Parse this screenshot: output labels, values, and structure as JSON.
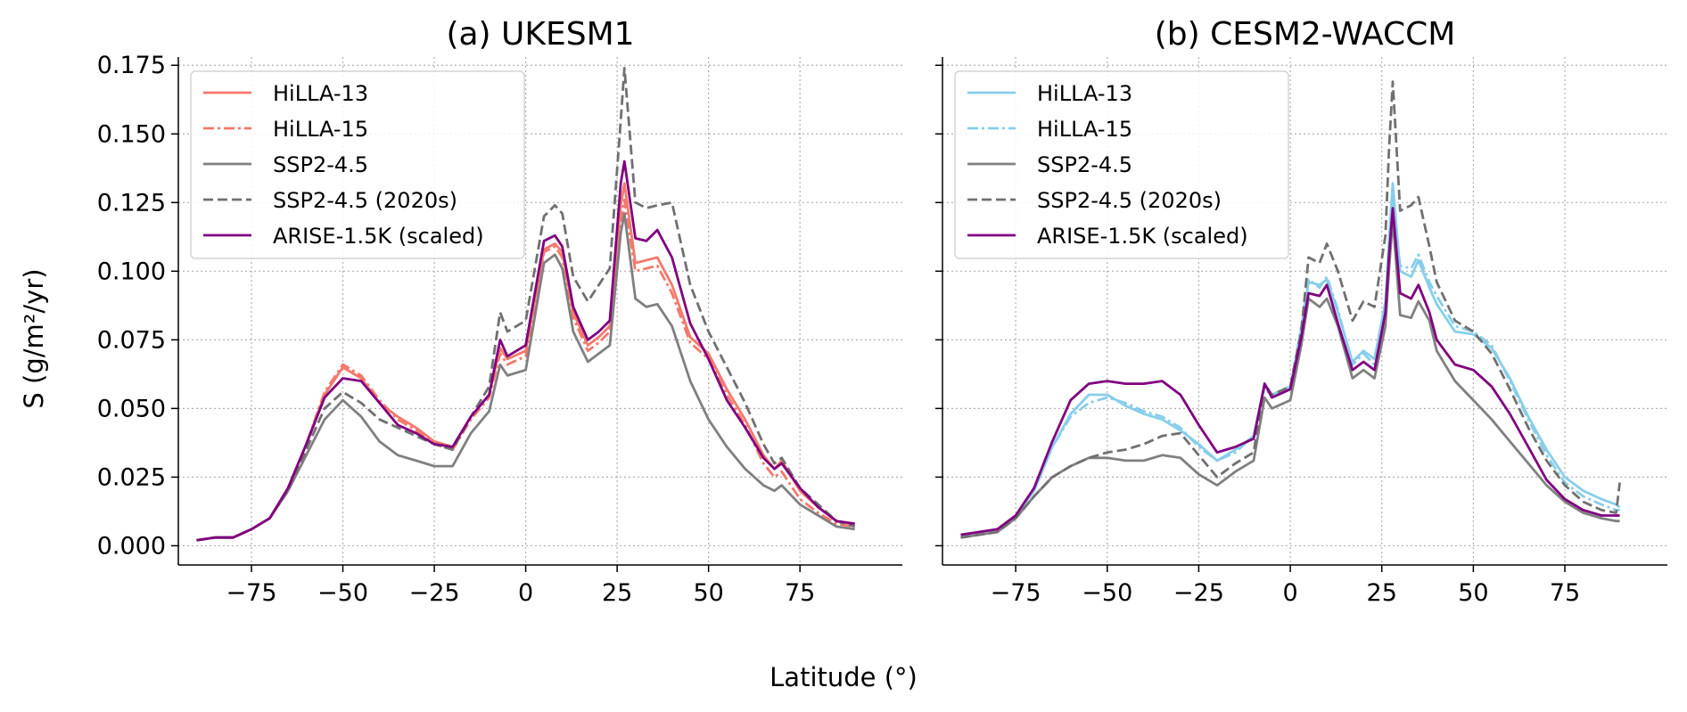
{
  "figure": {
    "ylabel": "S (g/m²/yr)",
    "xlabel": "Latitude (°)"
  },
  "chart_data": [
    {
      "type": "line",
      "title": "(a) UKESM1",
      "xlim": [
        -95,
        103
      ],
      "ylim": [
        -0.007,
        0.178
      ],
      "xticks": [
        -75,
        -50,
        -25,
        0,
        25,
        50,
        75
      ],
      "xtick_labels": [
        "−75",
        "−50",
        "−25",
        "0",
        "25",
        "50",
        "75"
      ],
      "yticks": [
        0.0,
        0.025,
        0.05,
        0.075,
        0.1,
        0.125,
        0.15,
        0.175
      ],
      "ytick_labels": [
        "0.000",
        "0.025",
        "0.050",
        "0.075",
        "0.100",
        "0.125",
        "0.150",
        "0.175"
      ],
      "grid": true,
      "legend_position": "top-left",
      "x": [
        -90,
        -85,
        -80,
        -75,
        -70,
        -65,
        -60,
        -55,
        -50,
        -45,
        -40,
        -35,
        -30,
        -25,
        -20,
        -15,
        -10,
        -7,
        -5,
        0,
        5,
        8,
        10,
        13,
        17,
        20,
        23,
        26,
        27,
        30,
        33,
        36,
        40,
        45,
        50,
        55,
        60,
        65,
        68,
        70,
        75,
        80,
        85,
        90
      ],
      "series": [
        {
          "name": "HiLLA-13",
          "color": "#f4796b",
          "dash": "solid",
          "values": [
            0.002,
            0.003,
            0.003,
            0.006,
            0.01,
            0.021,
            0.037,
            0.055,
            0.065,
            0.061,
            0.052,
            0.047,
            0.043,
            0.038,
            0.036,
            0.047,
            0.055,
            0.072,
            0.068,
            0.071,
            0.108,
            0.11,
            0.107,
            0.085,
            0.073,
            0.076,
            0.08,
            0.124,
            0.132,
            0.103,
            0.104,
            0.105,
            0.095,
            0.076,
            0.07,
            0.057,
            0.046,
            0.033,
            0.028,
            0.031,
            0.02,
            0.014,
            0.009,
            0.008
          ]
        },
        {
          "name": "HiLLA-15",
          "color": "#f4796b",
          "dash": "dashdot",
          "values": [
            0.002,
            0.003,
            0.003,
            0.006,
            0.01,
            0.021,
            0.037,
            0.056,
            0.066,
            0.062,
            0.053,
            0.046,
            0.042,
            0.037,
            0.035,
            0.046,
            0.054,
            0.07,
            0.066,
            0.069,
            0.107,
            0.109,
            0.105,
            0.083,
            0.071,
            0.074,
            0.078,
            0.118,
            0.126,
            0.1,
            0.101,
            0.102,
            0.092,
            0.074,
            0.068,
            0.055,
            0.044,
            0.03,
            0.025,
            0.027,
            0.017,
            0.012,
            0.008,
            0.007
          ]
        },
        {
          "name": "SSP2-4.5",
          "color": "#808080",
          "dash": "solid",
          "values": [
            0.002,
            0.003,
            0.003,
            0.006,
            0.01,
            0.02,
            0.033,
            0.046,
            0.053,
            0.047,
            0.038,
            0.033,
            0.031,
            0.029,
            0.029,
            0.041,
            0.049,
            0.066,
            0.062,
            0.064,
            0.103,
            0.106,
            0.101,
            0.078,
            0.067,
            0.07,
            0.073,
            0.114,
            0.121,
            0.09,
            0.087,
            0.088,
            0.08,
            0.06,
            0.046,
            0.036,
            0.028,
            0.022,
            0.02,
            0.022,
            0.015,
            0.011,
            0.007,
            0.006
          ]
        },
        {
          "name": "SSP2-4.5 (2020s)",
          "color": "#707070",
          "dash": "dashed",
          "values": [
            0.002,
            0.003,
            0.003,
            0.006,
            0.01,
            0.02,
            0.035,
            0.05,
            0.056,
            0.052,
            0.046,
            0.043,
            0.04,
            0.037,
            0.035,
            0.047,
            0.058,
            0.085,
            0.078,
            0.082,
            0.12,
            0.124,
            0.121,
            0.098,
            0.089,
            0.095,
            0.101,
            0.155,
            0.174,
            0.125,
            0.123,
            0.124,
            0.125,
            0.095,
            0.078,
            0.065,
            0.052,
            0.037,
            0.03,
            0.032,
            0.021,
            0.015,
            0.009,
            0.007
          ]
        },
        {
          "name": "ARISE-1.5K (scaled)",
          "color": "#800080",
          "dash": "solid",
          "values": [
            0.002,
            0.003,
            0.003,
            0.006,
            0.01,
            0.021,
            0.037,
            0.054,
            0.061,
            0.06,
            0.052,
            0.044,
            0.041,
            0.037,
            0.036,
            0.047,
            0.055,
            0.075,
            0.069,
            0.073,
            0.111,
            0.113,
            0.109,
            0.087,
            0.075,
            0.078,
            0.082,
            0.132,
            0.14,
            0.112,
            0.111,
            0.115,
            0.105,
            0.081,
            0.068,
            0.053,
            0.043,
            0.032,
            0.028,
            0.03,
            0.021,
            0.014,
            0.009,
            0.008
          ]
        }
      ]
    },
    {
      "type": "line",
      "title": "(b) CESM2-WACCM",
      "xlim": [
        -95,
        103
      ],
      "ylim": [
        -0.007,
        0.178
      ],
      "xticks": [
        -75,
        -50,
        -25,
        0,
        25,
        50,
        75
      ],
      "xtick_labels": [
        "−75",
        "−50",
        "−25",
        "0",
        "25",
        "50",
        "75"
      ],
      "yticks": [
        0.0,
        0.025,
        0.05,
        0.075,
        0.1,
        0.125,
        0.15,
        0.175
      ],
      "ytick_labels": [],
      "grid": true,
      "legend_position": "top-left",
      "x": [
        -90,
        -85,
        -80,
        -75,
        -70,
        -65,
        -60,
        -55,
        -50,
        -45,
        -40,
        -35,
        -30,
        -25,
        -20,
        -15,
        -10,
        -7,
        -5,
        0,
        3,
        5,
        8,
        10,
        13,
        17,
        20,
        23,
        26,
        27,
        28,
        30,
        33,
        35,
        38,
        40,
        45,
        50,
        55,
        60,
        65,
        70,
        75,
        80,
        85,
        89,
        90
      ],
      "series": [
        {
          "name": "HiLLA-13",
          "color": "#87ceeb",
          "dash": "solid",
          "values": [
            0.004,
            0.005,
            0.006,
            0.011,
            0.02,
            0.036,
            0.048,
            0.055,
            0.055,
            0.051,
            0.048,
            0.046,
            0.042,
            0.037,
            0.031,
            0.035,
            0.04,
            0.059,
            0.055,
            0.058,
            0.079,
            0.096,
            0.095,
            0.097,
            0.085,
            0.067,
            0.071,
            0.068,
            0.089,
            0.112,
            0.132,
            0.1,
            0.098,
            0.104,
            0.094,
            0.088,
            0.078,
            0.077,
            0.072,
            0.061,
            0.047,
            0.035,
            0.025,
            0.02,
            0.017,
            0.015,
            0.014
          ]
        },
        {
          "name": "HiLLA-15",
          "color": "#87ceeb",
          "dash": "dashdot",
          "values": [
            0.004,
            0.005,
            0.006,
            0.011,
            0.02,
            0.036,
            0.047,
            0.052,
            0.054,
            0.052,
            0.049,
            0.047,
            0.043,
            0.036,
            0.031,
            0.034,
            0.04,
            0.058,
            0.054,
            0.057,
            0.08,
            0.097,
            0.094,
            0.098,
            0.086,
            0.066,
            0.07,
            0.066,
            0.086,
            0.108,
            0.127,
            0.102,
            0.101,
            0.106,
            0.096,
            0.091,
            0.08,
            0.078,
            0.073,
            0.06,
            0.046,
            0.033,
            0.023,
            0.018,
            0.015,
            0.013,
            0.013
          ]
        },
        {
          "name": "SSP2-4.5",
          "color": "#808080",
          "dash": "solid",
          "values": [
            0.003,
            0.004,
            0.005,
            0.01,
            0.018,
            0.025,
            0.029,
            0.032,
            0.032,
            0.031,
            0.031,
            0.033,
            0.032,
            0.026,
            0.022,
            0.027,
            0.031,
            0.054,
            0.05,
            0.053,
            0.073,
            0.09,
            0.087,
            0.09,
            0.08,
            0.061,
            0.064,
            0.061,
            0.08,
            0.101,
            0.119,
            0.084,
            0.083,
            0.089,
            0.082,
            0.071,
            0.06,
            0.053,
            0.046,
            0.038,
            0.03,
            0.022,
            0.016,
            0.012,
            0.01,
            0.009,
            0.009
          ]
        },
        {
          "name": "SSP2-4.5 (2020s)",
          "color": "#707070",
          "dash": "dashed",
          "values": [
            0.003,
            0.004,
            0.005,
            0.01,
            0.018,
            0.025,
            0.029,
            0.032,
            0.034,
            0.035,
            0.037,
            0.04,
            0.041,
            0.033,
            0.025,
            0.03,
            0.034,
            0.059,
            0.055,
            0.058,
            0.078,
            0.105,
            0.103,
            0.11,
            0.1,
            0.082,
            0.089,
            0.087,
            0.113,
            0.145,
            0.169,
            0.122,
            0.124,
            0.127,
            0.109,
            0.096,
            0.082,
            0.078,
            0.07,
            0.057,
            0.043,
            0.031,
            0.022,
            0.016,
            0.013,
            0.012,
            0.023
          ]
        },
        {
          "name": "ARISE-1.5K (scaled)",
          "color": "#800080",
          "dash": "solid",
          "values": [
            0.004,
            0.005,
            0.006,
            0.011,
            0.021,
            0.038,
            0.053,
            0.059,
            0.06,
            0.059,
            0.059,
            0.06,
            0.055,
            0.044,
            0.034,
            0.036,
            0.039,
            0.059,
            0.054,
            0.057,
            0.076,
            0.092,
            0.091,
            0.095,
            0.081,
            0.064,
            0.067,
            0.064,
            0.085,
            0.106,
            0.123,
            0.092,
            0.09,
            0.095,
            0.085,
            0.075,
            0.066,
            0.064,
            0.058,
            0.048,
            0.036,
            0.024,
            0.017,
            0.013,
            0.011,
            0.011,
            0.011
          ]
        }
      ]
    }
  ]
}
